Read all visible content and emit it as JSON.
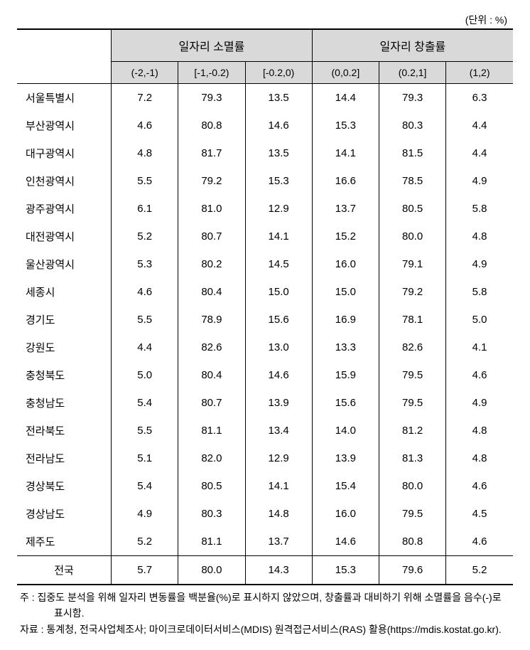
{
  "unit_label": "(단위 : %)",
  "header": {
    "group1": "일자리 소멸률",
    "group2": "일자리 창출률",
    "sub": [
      "(-2,-1)",
      "[-1,-0.2)",
      "[-0.2,0)",
      "(0,0.2]",
      "(0.2,1]",
      "(1,2)"
    ]
  },
  "rows": [
    {
      "region": "서울특별시",
      "v": [
        "7.2",
        "79.3",
        "13.5",
        "14.4",
        "79.3",
        "6.3"
      ]
    },
    {
      "region": "부산광역시",
      "v": [
        "4.6",
        "80.8",
        "14.6",
        "15.3",
        "80.3",
        "4.4"
      ]
    },
    {
      "region": "대구광역시",
      "v": [
        "4.8",
        "81.7",
        "13.5",
        "14.1",
        "81.5",
        "4.4"
      ]
    },
    {
      "region": "인천광역시",
      "v": [
        "5.5",
        "79.2",
        "15.3",
        "16.6",
        "78.5",
        "4.9"
      ]
    },
    {
      "region": "광주광역시",
      "v": [
        "6.1",
        "81.0",
        "12.9",
        "13.7",
        "80.5",
        "5.8"
      ]
    },
    {
      "region": "대전광역시",
      "v": [
        "5.2",
        "80.7",
        "14.1",
        "15.2",
        "80.0",
        "4.8"
      ]
    },
    {
      "region": "울산광역시",
      "v": [
        "5.3",
        "80.2",
        "14.5",
        "16.0",
        "79.1",
        "4.9"
      ]
    },
    {
      "region": "세종시",
      "v": [
        "4.6",
        "80.4",
        "15.0",
        "15.0",
        "79.2",
        "5.8"
      ]
    },
    {
      "region": "경기도",
      "v": [
        "5.5",
        "78.9",
        "15.6",
        "16.9",
        "78.1",
        "5.0"
      ]
    },
    {
      "region": "강원도",
      "v": [
        "4.4",
        "82.6",
        "13.0",
        "13.3",
        "82.6",
        "4.1"
      ]
    },
    {
      "region": "충청북도",
      "v": [
        "5.0",
        "80.4",
        "14.6",
        "15.9",
        "79.5",
        "4.6"
      ]
    },
    {
      "region": "충청남도",
      "v": [
        "5.4",
        "80.7",
        "13.9",
        "15.6",
        "79.5",
        "4.9"
      ]
    },
    {
      "region": "전라북도",
      "v": [
        "5.5",
        "81.1",
        "13.4",
        "14.0",
        "81.2",
        "4.8"
      ]
    },
    {
      "region": "전라남도",
      "v": [
        "5.1",
        "82.0",
        "12.9",
        "13.9",
        "81.3",
        "4.8"
      ]
    },
    {
      "region": "경상북도",
      "v": [
        "5.4",
        "80.5",
        "14.1",
        "15.4",
        "80.0",
        "4.6"
      ]
    },
    {
      "region": "경상남도",
      "v": [
        "4.9",
        "80.3",
        "14.8",
        "16.0",
        "79.5",
        "4.5"
      ]
    },
    {
      "region": "제주도",
      "v": [
        "5.2",
        "81.1",
        "13.7",
        "14.6",
        "80.8",
        "4.6"
      ]
    }
  ],
  "total": {
    "region": "전국",
    "v": [
      "5.7",
      "80.0",
      "14.3",
      "15.3",
      "79.6",
      "5.2"
    ]
  },
  "notes": {
    "note": "주 : 집중도 분석을 위해 일자리 변동률을 백분율(%)로 표시하지 않았으며, 창출률과 대비하기 위해 소멸률을 음수(-)로 표시함.",
    "source": "자료 : 통계청, 전국사업체조사; 마이크로데이터서비스(MDIS) 원격접근서비스(RAS) 활용(https://mdis.kostat.go.kr)."
  }
}
